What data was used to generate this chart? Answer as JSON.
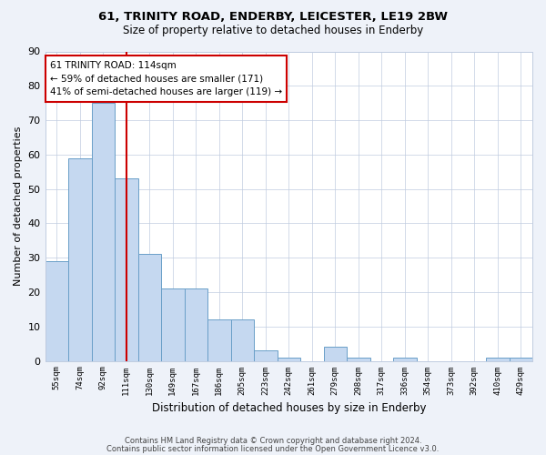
{
  "title1": "61, TRINITY ROAD, ENDERBY, LEICESTER, LE19 2BW",
  "title2": "Size of property relative to detached houses in Enderby",
  "xlabel": "Distribution of detached houses by size in Enderby",
  "ylabel": "Number of detached properties",
  "categories": [
    "55sqm",
    "74sqm",
    "92sqm",
    "111sqm",
    "130sqm",
    "149sqm",
    "167sqm",
    "186sqm",
    "205sqm",
    "223sqm",
    "242sqm",
    "261sqm",
    "279sqm",
    "298sqm",
    "317sqm",
    "336sqm",
    "354sqm",
    "373sqm",
    "392sqm",
    "410sqm",
    "429sqm"
  ],
  "values": [
    29,
    59,
    75,
    53,
    31,
    21,
    21,
    12,
    12,
    3,
    1,
    0,
    4,
    1,
    0,
    1,
    0,
    0,
    0,
    1,
    1
  ],
  "bar_color": "#c5d8f0",
  "bar_edge_color": "#6a9fc8",
  "vline_x_index": 3,
  "vline_color": "#cc0000",
  "annotation_lines": [
    "61 TRINITY ROAD: 114sqm",
    "← 59% of detached houses are smaller (171)",
    "41% of semi-detached houses are larger (119) →"
  ],
  "annotation_box_color": "#ffffff",
  "annotation_box_edge": "#cc0000",
  "ylim": [
    0,
    90
  ],
  "yticks": [
    0,
    10,
    20,
    30,
    40,
    50,
    60,
    70,
    80,
    90
  ],
  "footer1": "Contains HM Land Registry data © Crown copyright and database right 2024.",
  "footer2": "Contains public sector information licensed under the Open Government Licence v3.0.",
  "bg_color": "#eef2f9",
  "plot_bg_color": "#ffffff",
  "grid_color": "#c0cce0"
}
